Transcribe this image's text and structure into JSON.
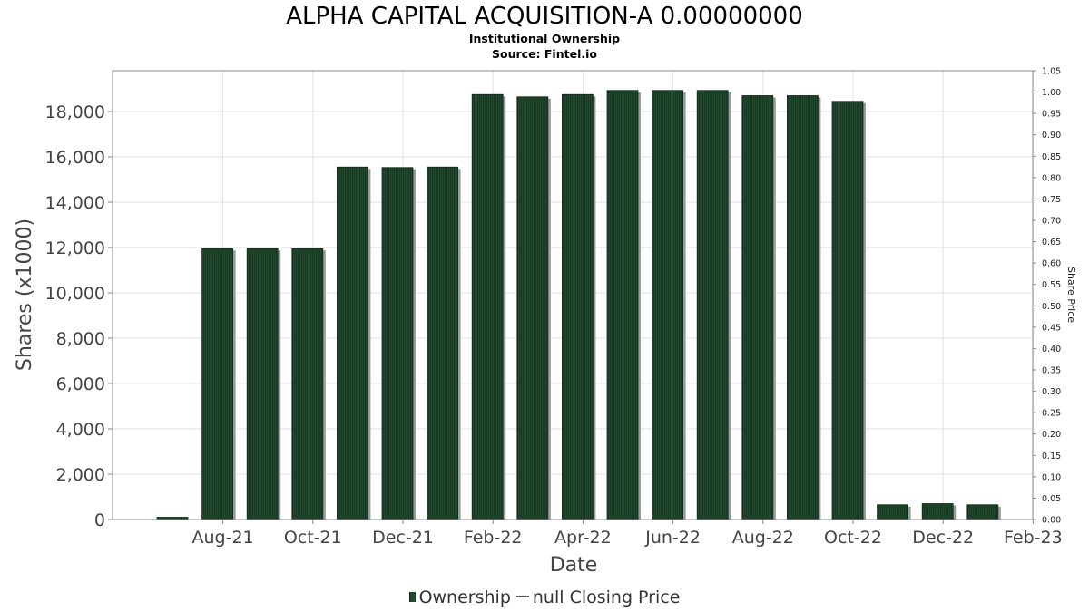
{
  "header": {
    "title": "ALPHA CAPITAL ACQUISITION-A 0.00000000",
    "subtitle1": "Institutional Ownership",
    "subtitle2": "Source: Fintel.io"
  },
  "legend": {
    "ownership_label": "Ownership",
    "price_label": "null Closing Price"
  },
  "chart_data": {
    "type": "bar",
    "title": "ALPHA CAPITAL ACQUISITION-A 0.00000000",
    "xlabel": "Date",
    "ylabel": "Shares (x1000)",
    "y2label": "Share Price",
    "ylim": [
      0,
      19800
    ],
    "y2lim": [
      0,
      1.05
    ],
    "grid": true,
    "legend_position": "bottom",
    "x_tick_labels": [
      "Aug-21",
      "Oct-21",
      "Dec-21",
      "Feb-22",
      "Apr-22",
      "Jun-22",
      "Aug-22",
      "Oct-22",
      "Dec-22",
      "Feb-23"
    ],
    "y_tick_labels": [
      "0",
      "2,000",
      "4,000",
      "6,000",
      "8,000",
      "10,000",
      "12,000",
      "14,000",
      "16,000",
      "18,000"
    ],
    "y_ticks": [
      0,
      2000,
      4000,
      6000,
      8000,
      10000,
      12000,
      14000,
      16000,
      18000
    ],
    "y2_tick_labels": [
      "0.00",
      "0.05",
      "0.10",
      "0.15",
      "0.20",
      "0.25",
      "0.30",
      "0.35",
      "0.40",
      "0.45",
      "0.50",
      "0.55",
      "0.60",
      "0.65",
      "0.70",
      "0.75",
      "0.80",
      "0.85",
      "0.90",
      "0.95",
      "1.00",
      "1.05"
    ],
    "series": [
      {
        "name": "Ownership",
        "color": "#1e4a2c",
        "values": [
          100,
          11950,
          11950,
          11950,
          15550,
          15530,
          15550,
          18750,
          18650,
          18750,
          18930,
          18930,
          18930,
          18700,
          18700,
          18450,
          650,
          700,
          650
        ]
      },
      {
        "name": "null Closing Price",
        "color": "#555555",
        "values": []
      }
    ]
  }
}
